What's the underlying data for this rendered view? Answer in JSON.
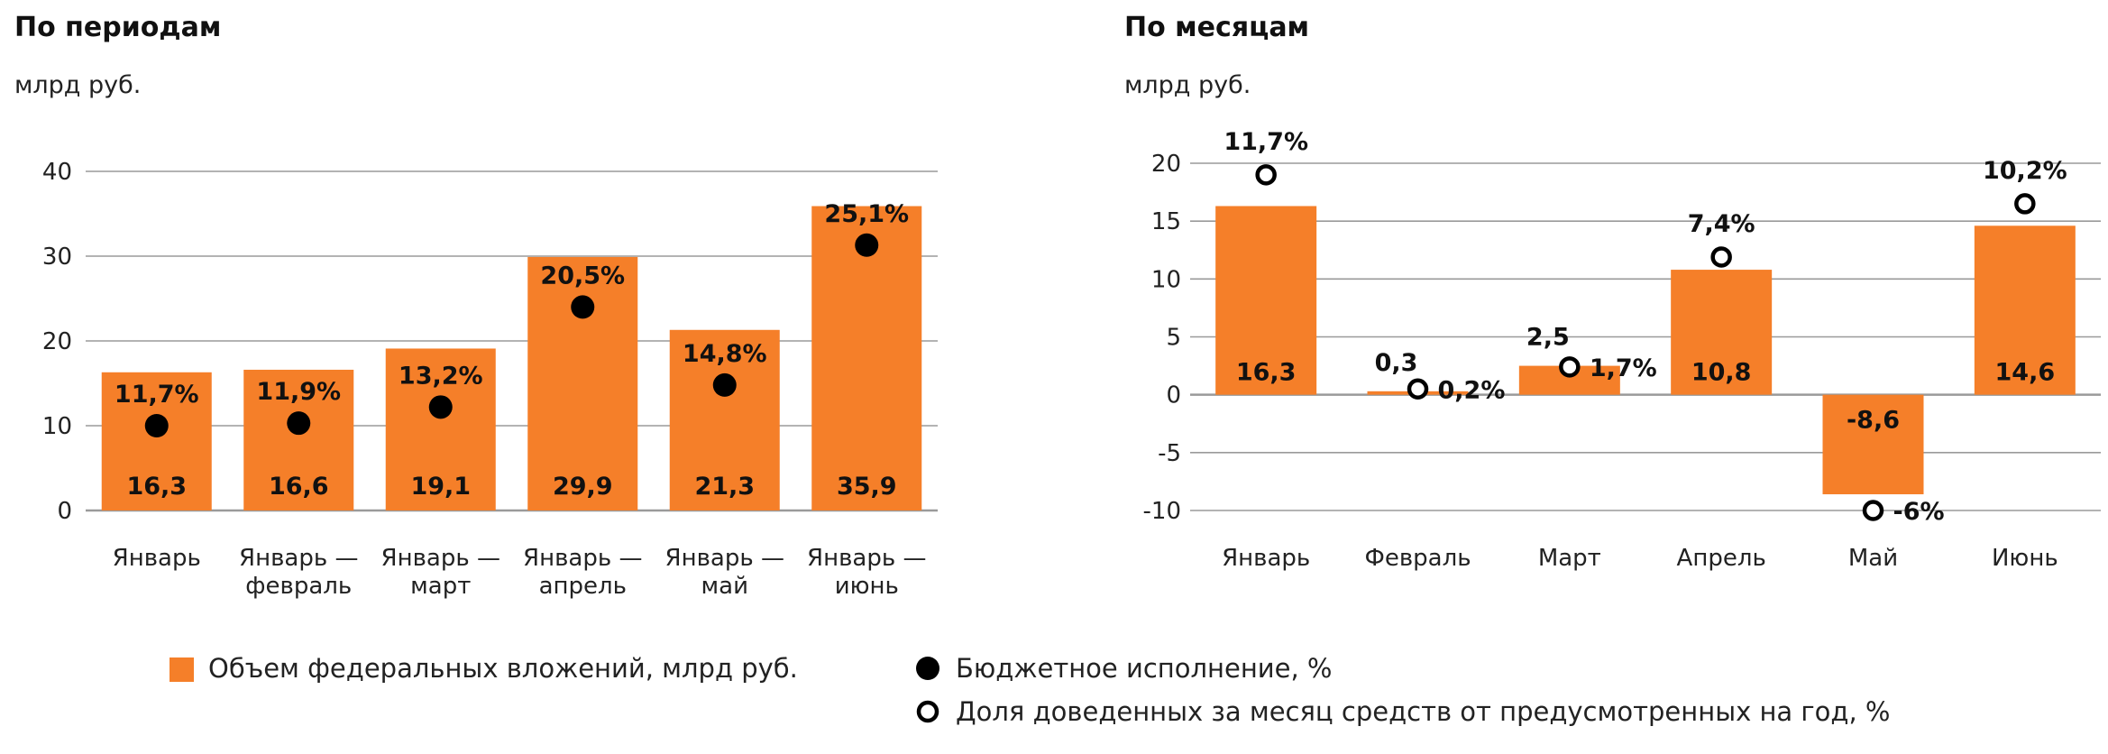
{
  "colors": {
    "bar": "#F57F29",
    "grid": "#9A9A9A",
    "marker": "#000000",
    "text": "#111111"
  },
  "chart_data": [
    {
      "type": "bar",
      "title": "По периодам",
      "unit": "млрд руб.",
      "categories": [
        "Январь",
        "Январь —\nфевраль",
        "Январь —\nмарт",
        "Январь —\nапрель",
        "Январь —\nмай",
        "Январь —\nиюнь"
      ],
      "ylim": [
        0,
        40
      ],
      "yticks": [
        0,
        10,
        20,
        30,
        40
      ],
      "grid": true,
      "series": [
        {
          "name": "Объем федеральных вложений, млрд руб.",
          "type": "bar",
          "values": [
            16.3,
            16.6,
            19.1,
            29.9,
            21.3,
            35.9
          ],
          "labels": [
            "16,3",
            "16,6",
            "19,1",
            "29,9",
            "21,3",
            "35,9"
          ]
        },
        {
          "name": "Бюджетное исполнение, %",
          "type": "scatter",
          "marker": "filled-circle",
          "values": [
            10,
            10.3,
            12.2,
            24,
            14.8,
            31.3
          ],
          "labels": [
            "11,7%",
            "11,9%",
            "13,2%",
            "20,5%",
            "14,8%",
            "25,1%"
          ]
        }
      ]
    },
    {
      "type": "bar",
      "title": "По месяцам",
      "unit": "млрд руб.",
      "categories": [
        "Январь",
        "Февраль",
        "Март",
        "Апрель",
        "Май",
        "Июнь"
      ],
      "ylim": [
        -10,
        20
      ],
      "yticks": [
        -10,
        -5,
        0,
        5,
        10,
        15,
        20
      ],
      "grid": true,
      "series": [
        {
          "name": "Объем федеральных вложений, млрд руб.",
          "type": "bar",
          "values": [
            16.3,
            0.3,
            2.5,
            10.8,
            -8.6,
            14.6
          ],
          "labels": [
            "16,3",
            "0,3",
            "2,5",
            "10,8",
            "-8,6",
            "14,6"
          ]
        },
        {
          "name": "Доля доведенных за месяц средств от предусмотренных на год, %",
          "type": "scatter",
          "marker": "open-circle",
          "values": [
            19,
            0.5,
            2.4,
            11.9,
            -10,
            16.5
          ],
          "labels": [
            "11,7%",
            "0,2%",
            "1,7%",
            "7,4%",
            "-6%",
            "10,2%"
          ]
        }
      ]
    }
  ],
  "legend": [
    {
      "label": "Объем федеральных вложений, млрд руб.",
      "icon": "orange-square-icon"
    },
    {
      "label": "Бюджетное исполнение, %",
      "icon": "filled-circle-icon"
    },
    {
      "label": "Доля доведенных за месяц средств от предусмотренных на год, %",
      "icon": "open-circle-icon"
    }
  ]
}
